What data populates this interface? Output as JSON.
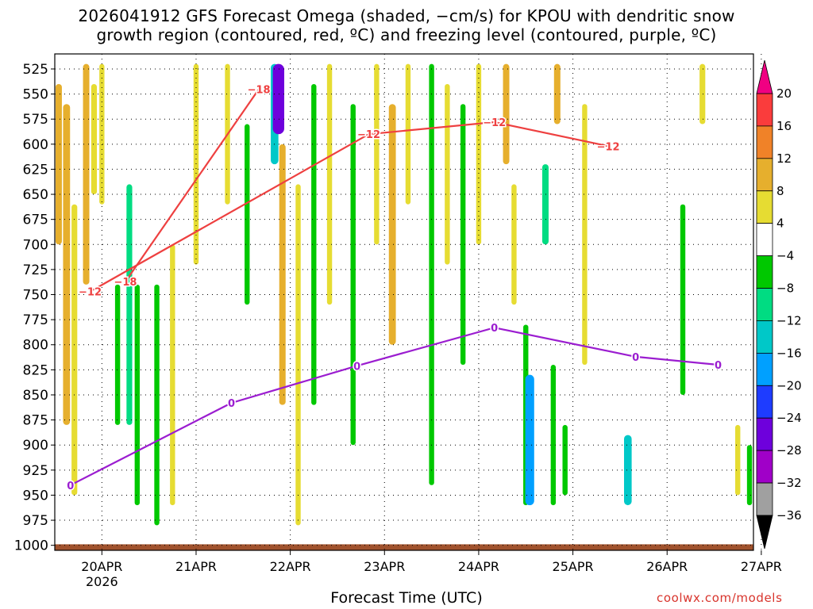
{
  "title_line1": "2026041912 GFS Forecast Omega (shaded, −cm/s) for KPOU with dendritic snow",
  "title_line2": "growth region (contoured, red, ºC) and freezing level (contoured, purple, ºC)",
  "credit": "coolwx.com/models",
  "chart_data": {
    "type": "heatmap",
    "title": "2026041912 GFS Forecast Omega (shaded, −cm/s) for KPOU with dendritic snow growth region (contoured, red, ºC) and freezing level (contoured, purple, ºC)",
    "xlabel": "Forecast Time (UTC)",
    "ylabel": "",
    "x_ticks": [
      "20APR",
      "21APR",
      "22APR",
      "23APR",
      "24APR",
      "25APR",
      "26APR",
      "27APR"
    ],
    "x_year_label": "2026",
    "x_range_hours": [
      0,
      178
    ],
    "y_ticks": [
      525,
      550,
      575,
      600,
      625,
      650,
      675,
      700,
      725,
      750,
      775,
      800,
      825,
      850,
      875,
      900,
      925,
      950,
      975,
      1000
    ],
    "y_range": [
      1005,
      510
    ],
    "grid": true,
    "colorbar": {
      "levels": [
        -36,
        -32,
        -28,
        -24,
        -20,
        -16,
        -12,
        -8,
        -4,
        4,
        8,
        12,
        16,
        20
      ],
      "colors": [
        "#000000",
        "#a0a0a0",
        "#a000c8",
        "#6e00dc",
        "#1e3cff",
        "#00a0ff",
        "#00c8c8",
        "#00dc82",
        "#00c800",
        "#ffffff",
        "#e6dc32",
        "#e6af2d",
        "#f08228",
        "#fa3c3c",
        "#f00082"
      ]
    },
    "contours": [
      {
        "name": "-18",
        "color": "#ee4040",
        "label_positions": [
          [
            52,
            545
          ],
          [
            18,
            737
          ]
        ]
      },
      {
        "name": "-12",
        "color": "#ee4040",
        "label_positions": [
          [
            9,
            747
          ],
          [
            80,
            590
          ],
          [
            112,
            578
          ],
          [
            141,
            602
          ]
        ]
      },
      {
        "name": "0",
        "color": "#9b1dd0",
        "label_positions": [
          [
            4,
            940
          ],
          [
            45,
            858
          ],
          [
            77,
            821
          ],
          [
            112,
            783
          ],
          [
            148,
            812
          ],
          [
            169,
            820
          ]
        ]
      }
    ],
    "omega_cells": [
      {
        "t": 1,
        "p1": 540,
        "p2": 700,
        "v": 10
      },
      {
        "t": 3,
        "p1": 560,
        "p2": 880,
        "v": 12
      },
      {
        "t": 5,
        "p1": 660,
        "p2": 950,
        "v": 8
      },
      {
        "t": 8,
        "p1": 520,
        "p2": 740,
        "v": 10
      },
      {
        "t": 10,
        "p1": 540,
        "p2": 650,
        "v": 8
      },
      {
        "t": 12,
        "p1": 520,
        "p2": 660,
        "v": 6
      },
      {
        "t": 16,
        "p1": 740,
        "p2": 880,
        "v": -6
      },
      {
        "t": 19,
        "p1": 640,
        "p2": 880,
        "v": -8
      },
      {
        "t": 21,
        "p1": 740,
        "p2": 960,
        "v": -6
      },
      {
        "t": 26,
        "p1": 740,
        "p2": 980,
        "v": -6
      },
      {
        "t": 30,
        "p1": 700,
        "p2": 960,
        "v": 6
      },
      {
        "t": 36,
        "p1": 520,
        "p2": 720,
        "v": 6
      },
      {
        "t": 44,
        "p1": 520,
        "p2": 660,
        "v": 6
      },
      {
        "t": 49,
        "p1": 580,
        "p2": 760,
        "v": -6
      },
      {
        "t": 56,
        "p1": 520,
        "p2": 620,
        "v": -14
      },
      {
        "t": 57,
        "p1": 520,
        "p2": 590,
        "v": -26
      },
      {
        "t": 58,
        "p1": 600,
        "p2": 860,
        "v": 10
      },
      {
        "t": 62,
        "p1": 640,
        "p2": 980,
        "v": 6
      },
      {
        "t": 66,
        "p1": 540,
        "p2": 860,
        "v": -6
      },
      {
        "t": 70,
        "p1": 520,
        "p2": 760,
        "v": 6
      },
      {
        "t": 76,
        "p1": 560,
        "p2": 900,
        "v": -6
      },
      {
        "t": 82,
        "p1": 520,
        "p2": 700,
        "v": 6
      },
      {
        "t": 86,
        "p1": 560,
        "p2": 800,
        "v": 12
      },
      {
        "t": 90,
        "p1": 520,
        "p2": 660,
        "v": 6
      },
      {
        "t": 96,
        "p1": 520,
        "p2": 940,
        "v": -6
      },
      {
        "t": 100,
        "p1": 540,
        "p2": 720,
        "v": 6
      },
      {
        "t": 104,
        "p1": 560,
        "p2": 820,
        "v": -6
      },
      {
        "t": 108,
        "p1": 520,
        "p2": 700,
        "v": 6
      },
      {
        "t": 115,
        "p1": 520,
        "p2": 620,
        "v": 10
      },
      {
        "t": 117,
        "p1": 640,
        "p2": 760,
        "v": 6
      },
      {
        "t": 120,
        "p1": 780,
        "p2": 960,
        "v": -6
      },
      {
        "t": 121,
        "p1": 830,
        "p2": 960,
        "v": -18
      },
      {
        "t": 125,
        "p1": 620,
        "p2": 700,
        "v": -10
      },
      {
        "t": 127,
        "p1": 820,
        "p2": 960,
        "v": -6
      },
      {
        "t": 128,
        "p1": 520,
        "p2": 580,
        "v": 10
      },
      {
        "t": 130,
        "p1": 880,
        "p2": 950,
        "v": -6
      },
      {
        "t": 135,
        "p1": 560,
        "p2": 820,
        "v": 6
      },
      {
        "t": 146,
        "p1": 890,
        "p2": 960,
        "v": -14
      },
      {
        "t": 160,
        "p1": 660,
        "p2": 850,
        "v": -6
      },
      {
        "t": 165,
        "p1": 520,
        "p2": 580,
        "v": 8
      },
      {
        "t": 174,
        "p1": 880,
        "p2": 950,
        "v": 6
      },
      {
        "t": 177,
        "p1": 900,
        "p2": 960,
        "v": -6
      }
    ]
  }
}
